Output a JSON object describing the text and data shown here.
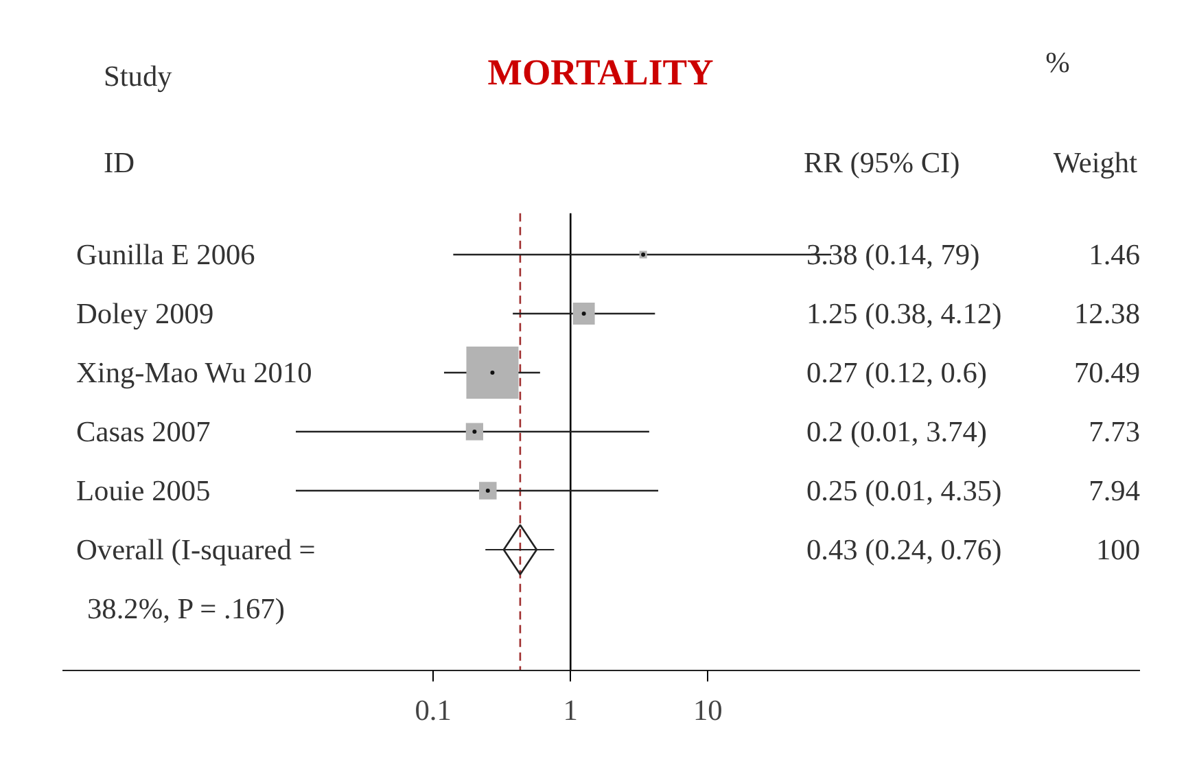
{
  "chart_data": {
    "type": "scatter",
    "orientation": "horizontal",
    "title": "MORTALITY",
    "categories": [
      "Gunilla E 2006",
      "Doley 2009",
      "Xing-Mao Wu 2010",
      "Casas 2007",
      "Louie 2005",
      "Overall (I-squared = 38.2%, P = .167)"
    ],
    "xlim": [
      0.0002,
      14000
    ],
    "xticks": [
      0.1,
      1,
      10
    ],
    "log": "x",
    "grid": false,
    "series": [
      {
        "marker": "square",
        "color": "#b3b3b3",
        "values": [
          3.38,
          1.25,
          0.27,
          0.2,
          0.25,
          null
        ],
        "errors": [
          [
            0.14,
            79
          ],
          [
            0.38,
            4.12
          ],
          [
            0.12,
            0.6
          ],
          [
            0.01,
            3.74
          ],
          [
            0.01,
            4.35
          ],
          null
        ],
        "sizes": [
          0.021,
          0.176,
          1,
          0.11,
          0.113,
          null
        ]
      },
      {
        "marker": "diamond",
        "color": "#222222",
        "values": [
          null,
          null,
          null,
          null,
          null,
          0.43
        ],
        "errors": [
          null,
          null,
          null,
          null,
          null,
          [
            0.24,
            0.76
          ]
        ]
      }
    ],
    "ref_lines": [
      {
        "axis": "x",
        "value": 1,
        "color": "#000000",
        "line_style": "solid"
      },
      {
        "axis": "x",
        "value": 0.43,
        "color": "#a03030",
        "line_style": "dashed"
      }
    ],
    "annotations": [
      "Study",
      "ID",
      "RR (95% CI)",
      "%",
      "Weight",
      "3.38 (0.14, 79)",
      "1.46",
      "1.25 (0.38, 4.12)",
      "12.38",
      "0.27 (0.12, 0.6)",
      "70.49",
      "0.2 (0.01, 3.74)",
      "7.73",
      "0.25 (0.01, 4.35)",
      "7.94",
      "0.43 (0.24, 0.76)",
      "100"
    ]
  }
}
